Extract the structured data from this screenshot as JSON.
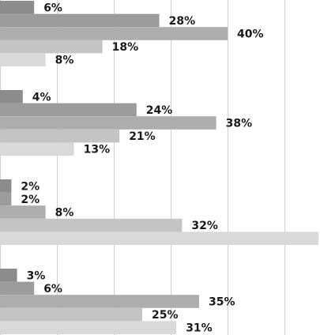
{
  "chart_data": {
    "type": "bar",
    "orientation": "horizontal",
    "groups": [
      {
        "values": [
          6,
          28,
          40,
          18,
          8
        ],
        "labels": [
          "6%",
          "28%",
          "40%",
          "18%",
          "8%"
        ]
      },
      {
        "values": [
          4,
          24,
          38,
          21,
          13
        ],
        "labels": [
          "4%",
          "24%",
          "38%",
          "21%",
          "13%"
        ]
      },
      {
        "values": [
          2,
          2,
          8,
          32,
          56
        ],
        "labels": [
          "2%",
          "2%",
          "8%",
          "32%",
          ""
        ]
      },
      {
        "values": [
          3,
          6,
          35,
          25,
          31
        ],
        "labels": [
          "3%",
          "6%",
          "35%",
          "25%",
          "31%"
        ]
      }
    ],
    "series_colors": [
      "#8c8c8c",
      "#9c9c9c",
      "#adadad",
      "#c4c4c4",
      "#d9d9d9"
    ],
    "grid_color": "#d0d0d0",
    "gridlines": true,
    "xlim": [
      0,
      56
    ],
    "value_unit": "%"
  }
}
